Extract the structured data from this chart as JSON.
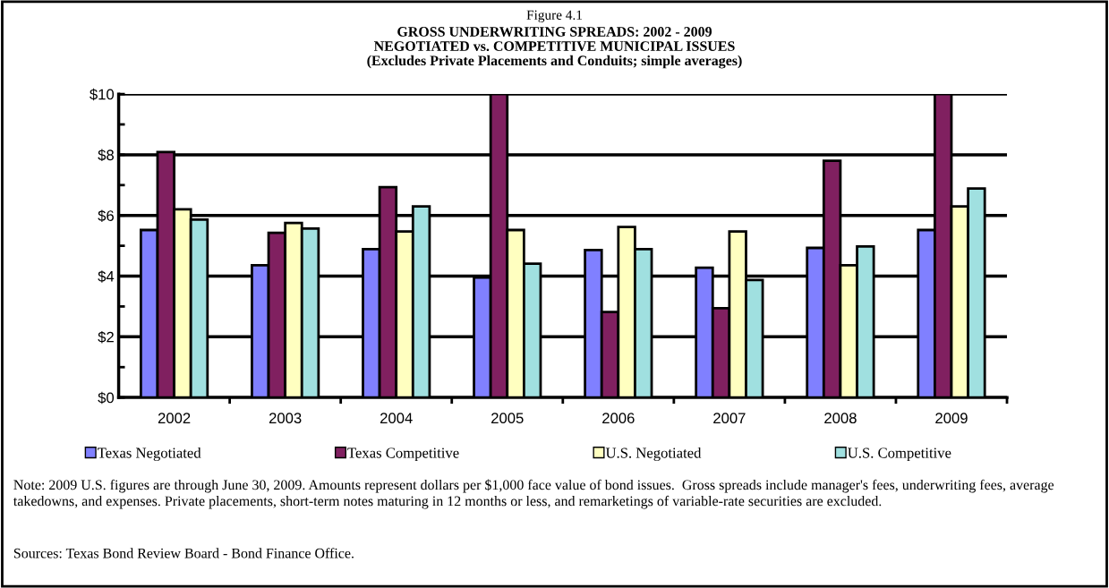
{
  "chart_data": {
    "type": "bar",
    "title": "Figure 4.1",
    "subtitle": "GROSS UNDERWRITING SPREADS: 2002 - 2009\nNEGOTIATED vs. COMPETITIVE MUNICIPAL ISSUES\n(Excludes Private Placements and Conduits; simple averages)",
    "categories": [
      "2002",
      "2003",
      "2004",
      "2005",
      "2006",
      "2007",
      "2008",
      "2009"
    ],
    "series": [
      {
        "name": "Texas Negotiated",
        "color": "#8080ff",
        "values": [
          5.52,
          4.36,
          4.89,
          3.95,
          4.86,
          4.28,
          4.93,
          5.52
        ]
      },
      {
        "name": "Texas Competitive",
        "color": "#802060",
        "values": [
          8.09,
          5.43,
          6.93,
          10,
          2.82,
          2.94,
          7.8,
          10
        ]
      },
      {
        "name": "U.S. Negotiated",
        "color": "#ffffc0",
        "values": [
          6.2,
          5.75,
          5.47,
          5.52,
          5.62,
          5.47,
          4.36,
          6.3
        ]
      },
      {
        "name": "U.S. Competitive",
        "color": "#a0e0e0",
        "values": [
          5.86,
          5.57,
          6.3,
          4.41,
          4.89,
          3.87,
          4.98,
          6.89
        ]
      }
    ],
    "ylim": [
      0,
      10
    ],
    "yticks": [
      {
        "value": 0,
        "label": "$0"
      },
      {
        "value": 1,
        "label": null
      },
      {
        "value": 2,
        "label": "$2"
      },
      {
        "value": 3,
        "label": null
      },
      {
        "value": 4,
        "label": "$4"
      },
      {
        "value": 5,
        "label": null
      },
      {
        "value": 6,
        "label": "$6"
      },
      {
        "value": 7,
        "label": null
      },
      {
        "value": 8,
        "label": "$8"
      },
      {
        "value": 9,
        "label": null
      },
      {
        "value": 10,
        "label": "$10"
      }
    ],
    "grid": "y",
    "legend": "bottom",
    "annotations": [
      "Note: 2009 U.S. figures are through June 30, 2009. Amounts represent dollars per $1,000 face value of bond issues.  Gross spreads include manager's fees, underwriting fees, average takedowns, and expenses. Private placements, short-term notes maturing in 12 months or less, and remarketings of variable-rate securities are excluded.",
      "Sources: Texas Bond Review Board - Bond Finance Office."
    ]
  }
}
